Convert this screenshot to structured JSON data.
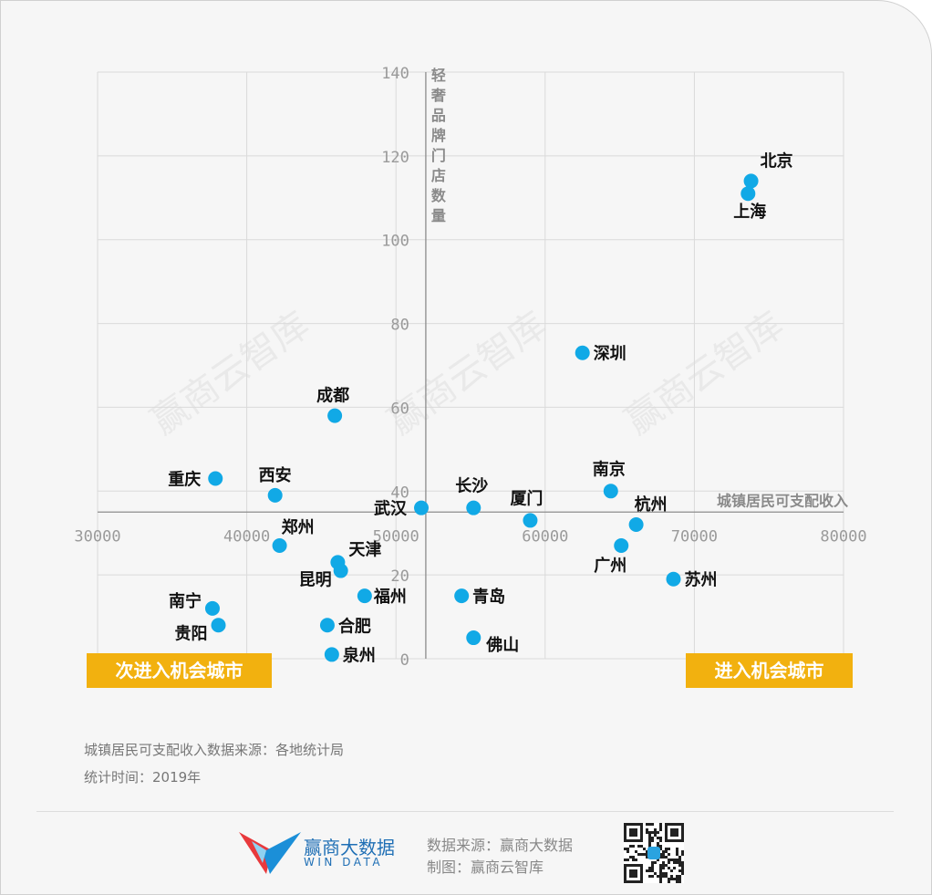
{
  "chart_data": {
    "type": "scatter",
    "xlabel": "城镇居民可支配收入",
    "ylabel": "轻奢品牌门店数量",
    "xlim": [
      30000,
      80000
    ],
    "ylim": [
      0,
      140
    ],
    "x_cross": 52000,
    "y_cross": 35,
    "x_ticks": [
      30000,
      40000,
      50000,
      60000,
      70000,
      80000
    ],
    "y_ticks": [
      0,
      20,
      40,
      60,
      80,
      100,
      120,
      140
    ],
    "grid": true,
    "point_color": "#11a9e6",
    "points": [
      {
        "name": "北京",
        "x": 73800,
        "y": 114
      },
      {
        "name": "上海",
        "x": 73600,
        "y": 111
      },
      {
        "name": "深圳",
        "x": 62500,
        "y": 73
      },
      {
        "name": "成都",
        "x": 45900,
        "y": 58
      },
      {
        "name": "重庆",
        "x": 37900,
        "y": 43
      },
      {
        "name": "西安",
        "x": 41900,
        "y": 39
      },
      {
        "name": "南京",
        "x": 64400,
        "y": 40
      },
      {
        "name": "长沙",
        "x": 55200,
        "y": 36
      },
      {
        "name": "武汉",
        "x": 51700,
        "y": 36
      },
      {
        "name": "厦门",
        "x": 59000,
        "y": 33
      },
      {
        "name": "杭州",
        "x": 66100,
        "y": 32
      },
      {
        "name": "郑州",
        "x": 42200,
        "y": 27
      },
      {
        "name": "广州",
        "x": 65100,
        "y": 27
      },
      {
        "name": "天津",
        "x": 46100,
        "y": 23
      },
      {
        "name": "昆明",
        "x": 46300,
        "y": 21
      },
      {
        "name": "苏州",
        "x": 68600,
        "y": 19
      },
      {
        "name": "福州",
        "x": 47900,
        "y": 15
      },
      {
        "name": "青岛",
        "x": 54400,
        "y": 15
      },
      {
        "name": "南宁",
        "x": 37700,
        "y": 12
      },
      {
        "name": "贵阳",
        "x": 38100,
        "y": 8
      },
      {
        "name": "合肥",
        "x": 45400,
        "y": 8
      },
      {
        "name": "佛山",
        "x": 55200,
        "y": 5
      },
      {
        "name": "泉州",
        "x": 45700,
        "y": 1
      }
    ]
  },
  "quadrant_labels": {
    "left": "次进入机会城市",
    "right": "进入机会城市"
  },
  "watermark": "赢商云智库",
  "notes": {
    "source": "城镇居民可支配收入数据来源：各地统计局",
    "time": "统计时间：2019年"
  },
  "footer": {
    "brand_name": "赢商大数据",
    "brand_en": "WIN DATA",
    "data_source": "数据来源：赢商大数据",
    "made_by": "制图：赢商云智库",
    "logo_colors": [
      "#e8393c",
      "#1b8fd8",
      "#8fd1f1"
    ]
  }
}
